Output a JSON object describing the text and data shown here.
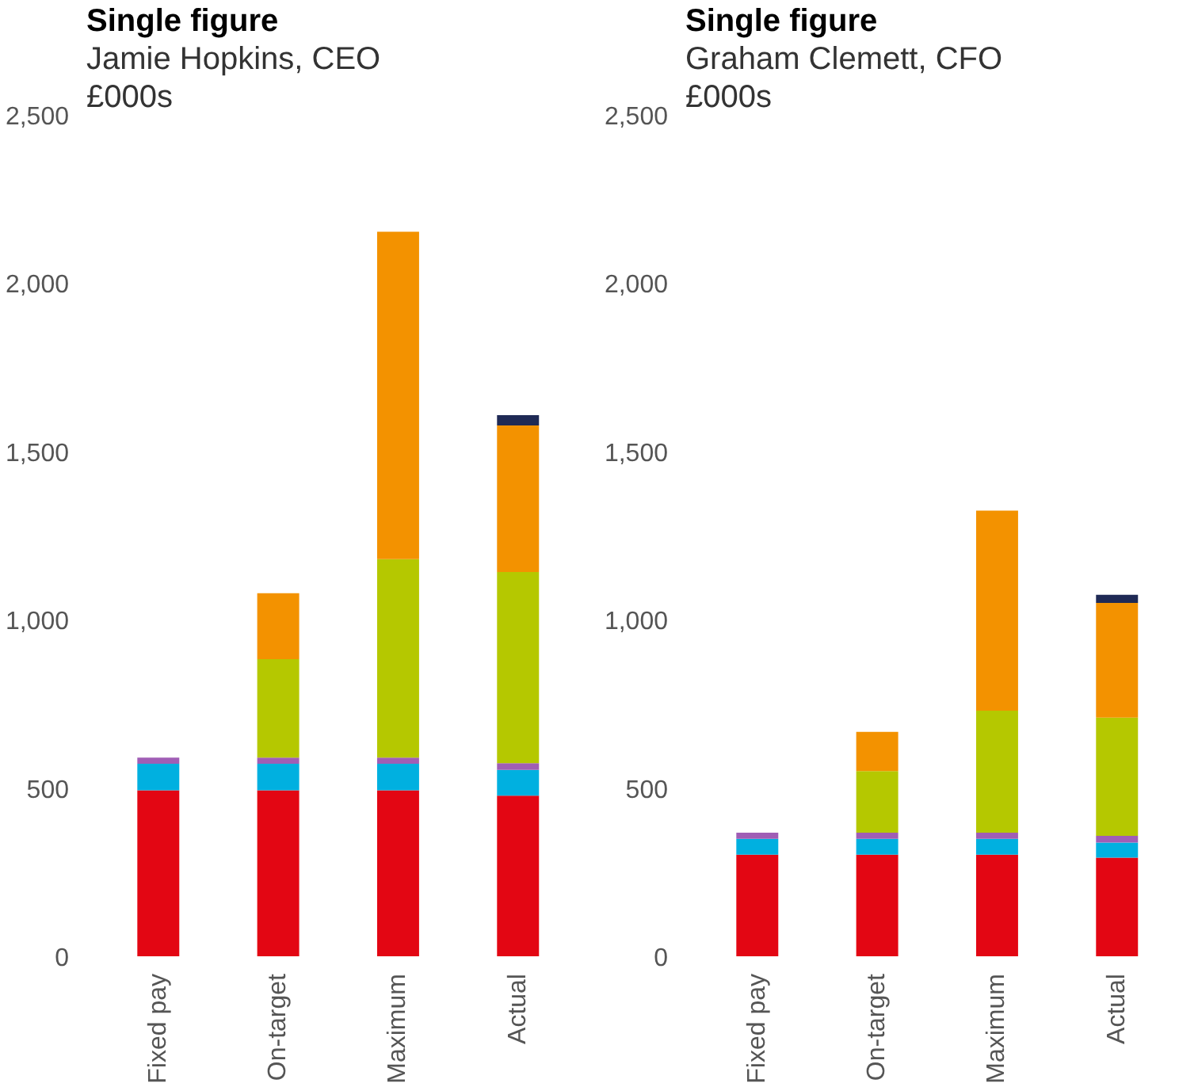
{
  "chart_data": [
    {
      "type": "bar",
      "stacked": true,
      "title": "Single figure",
      "subtitle": "Jamie Hopkins, CEO",
      "ylabel": "£000s",
      "categories": [
        "Fixed pay",
        "On-target",
        "Maximum",
        "Actual"
      ],
      "series": [
        {
          "color": "#e30613",
          "values": [
            493,
            493,
            493,
            477
          ]
        },
        {
          "color": "#00b0e0",
          "values": [
            79,
            79,
            79,
            77
          ]
        },
        {
          "color": "#a05eb5",
          "values": [
            18,
            18,
            18,
            20
          ]
        },
        {
          "color": "#b5c800",
          "values": [
            null,
            293,
            590,
            568
          ]
        },
        {
          "color": "#f39200",
          "values": [
            null,
            196,
            973,
            435
          ]
        },
        {
          "color": "#1f2a55",
          "values": [
            null,
            null,
            null,
            31
          ]
        }
      ],
      "ylim": [
        0,
        2500
      ],
      "yticks": [
        0,
        {
          "value": 500,
          "label": "500"
        },
        {
          "value": 1000,
          "label": "1,000"
        },
        {
          "value": 1500,
          "label": "1,500"
        },
        {
          "value": 2000,
          "label": "2,000"
        },
        {
          "value": 2500,
          "label": "2,500"
        }
      ],
      "grid": false
    },
    {
      "type": "bar",
      "stacked": true,
      "title": "Single figure",
      "subtitle": "Graham Clemett, CFO",
      "ylabel": "£000s",
      "categories": [
        "Fixed pay",
        "On-target",
        "Maximum",
        "Actual"
      ],
      "series": [
        {
          "color": "#e30613",
          "values": [
            302,
            302,
            302,
            293
          ]
        },
        {
          "color": "#00b0e0",
          "values": [
            47,
            47,
            47,
            45
          ]
        },
        {
          "color": "#a05eb5",
          "values": [
            18,
            18,
            18,
            20
          ]
        },
        {
          "color": "#b5c800",
          "values": [
            null,
            183,
            363,
            351
          ]
        },
        {
          "color": "#f39200",
          "values": [
            null,
            117,
            594,
            341
          ]
        },
        {
          "color": "#1f2a55",
          "values": [
            null,
            null,
            null,
            24
          ]
        }
      ],
      "ylim": [
        0,
        2500
      ],
      "yticks": [
        0,
        {
          "value": 500,
          "label": "500"
        },
        {
          "value": 1000,
          "label": "1,000"
        },
        {
          "value": 1500,
          "label": "1,500"
        },
        {
          "value": 2000,
          "label": "2,000"
        },
        {
          "value": 2500,
          "label": "2,500"
        }
      ],
      "grid": false
    }
  ]
}
